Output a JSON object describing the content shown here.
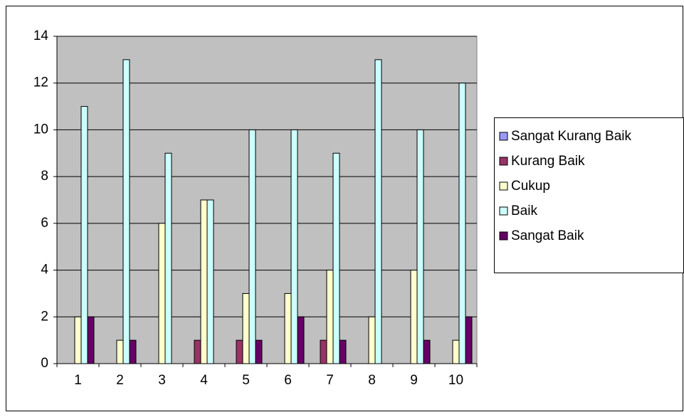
{
  "chart_data": {
    "type": "bar",
    "categories": [
      "1",
      "2",
      "3",
      "4",
      "5",
      "6",
      "7",
      "8",
      "9",
      "10"
    ],
    "series": [
      {
        "name": "Sangat Kurang Baik",
        "color": "#9999ff",
        "values": [
          0,
          0,
          0,
          0,
          0,
          0,
          0,
          0,
          0,
          0
        ]
      },
      {
        "name": "Kurang Baik",
        "color": "#993366",
        "values": [
          0,
          0,
          0,
          1,
          1,
          0,
          1,
          0,
          0,
          0
        ]
      },
      {
        "name": "Cukup",
        "color": "#ffffcc",
        "values": [
          2,
          1,
          6,
          7,
          3,
          3,
          4,
          2,
          4,
          1
        ]
      },
      {
        "name": "Baik",
        "color": "#ccffff",
        "values": [
          11,
          13,
          9,
          7,
          10,
          10,
          9,
          13,
          10,
          12
        ]
      },
      {
        "name": "Sangat Baik",
        "color": "#660066",
        "values": [
          2,
          1,
          0,
          0,
          1,
          2,
          1,
          0,
          1,
          2
        ]
      }
    ],
    "ylim": [
      0,
      14
    ],
    "yticks": [
      0,
      2,
      4,
      6,
      8,
      10,
      12,
      14
    ],
    "grid": true,
    "legend": "right"
  }
}
